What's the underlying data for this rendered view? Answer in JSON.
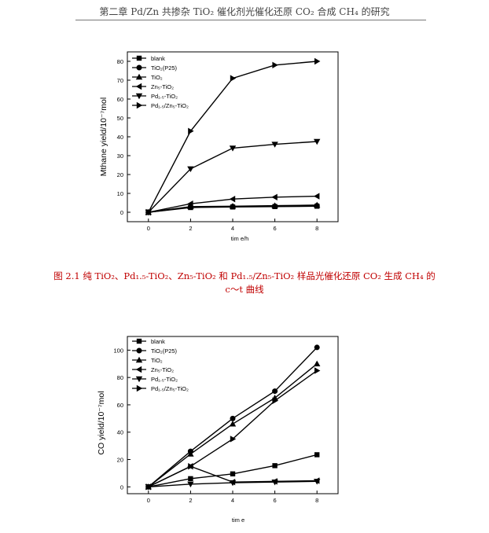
{
  "page": {
    "running_head": "第二章 Pd/Zn 共掺杂 TiO₂ 催化剂光催化还原 CO₂ 合成 CH₄ 的研究",
    "figure_caption_line1": "图 2.1 纯 TiO₂、Pd₁.₅-TiO₂、Zn₅-TiO₂ 和 Pd₁.₅/Zn₅-TiO₂ 样品光催化还原 CO₂ 生成 CH₄ 的",
    "figure_caption_line2": "c～t 曲线"
  },
  "chart_data": [
    {
      "type": "line",
      "ylabel": "Mthane yield/10⁻⁷mol",
      "xlabel": "tim e/h",
      "x": [
        0,
        2,
        4,
        6,
        8
      ],
      "xlim": [
        -1,
        9
      ],
      "ylim": [
        -5,
        85
      ],
      "xticks": [
        0,
        2,
        4,
        6,
        8
      ],
      "yticks": [
        0,
        10,
        20,
        30,
        40,
        50,
        60,
        70,
        80
      ],
      "grid": false,
      "legend_position": "top-left",
      "series": [
        {
          "name": "blank",
          "marker": "square",
          "values": [
            0,
            2.5,
            2.8,
            3.0,
            3.2
          ]
        },
        {
          "name": "TiO₂(P25)",
          "marker": "circle",
          "values": [
            0,
            2.8,
            3.0,
            3.2,
            3.5
          ]
        },
        {
          "name": "TiO₂",
          "marker": "triangle-up",
          "values": [
            0,
            3.0,
            3.2,
            3.5,
            3.8
          ]
        },
        {
          "name": "Zn₅-TiO₂",
          "marker": "triangle-left",
          "values": [
            0,
            4.5,
            7,
            8,
            8.5
          ]
        },
        {
          "name": "Pd₁.₅-TiO₂",
          "marker": "triangle-down",
          "values": [
            0,
            23,
            34,
            36,
            37.5
          ]
        },
        {
          "name": "Pd₁.₅/Zn₅-TiO₂",
          "marker": "triangle-right",
          "values": [
            0,
            43,
            71,
            78,
            80
          ]
        }
      ]
    },
    {
      "type": "line",
      "ylabel": "CO yield/10⁻⁷mol",
      "xlabel": "tim e",
      "x": [
        0,
        2,
        4,
        6,
        8
      ],
      "xlim": [
        -1,
        9
      ],
      "ylim": [
        -5,
        110
      ],
      "xticks": [
        0,
        2,
        4,
        6,
        8
      ],
      "yticks": [
        0,
        20,
        40,
        60,
        80,
        100
      ],
      "grid": false,
      "legend_position": "top-left",
      "series": [
        {
          "name": "blank",
          "marker": "square",
          "values": [
            0,
            6,
            9.5,
            15.5,
            23.5
          ]
        },
        {
          "name": "TiO₂(P25)",
          "marker": "circle",
          "values": [
            0,
            26,
            50,
            70,
            102
          ]
        },
        {
          "name": "TiO₂",
          "marker": "triangle-up",
          "values": [
            0,
            24,
            46,
            65,
            90
          ]
        },
        {
          "name": "Zn₅-TiO₂",
          "marker": "triangle-left",
          "values": [
            0,
            15,
            3.5,
            4,
            4.5
          ]
        },
        {
          "name": "Pd₁.₅-TiO₂",
          "marker": "triangle-down",
          "values": [
            0,
            2,
            3,
            3.5,
            4
          ]
        },
        {
          "name": "Pd₁.₅/Zn₅-TiO₂",
          "marker": "triangle-right",
          "values": [
            0,
            15,
            35,
            63,
            85
          ]
        }
      ]
    }
  ]
}
